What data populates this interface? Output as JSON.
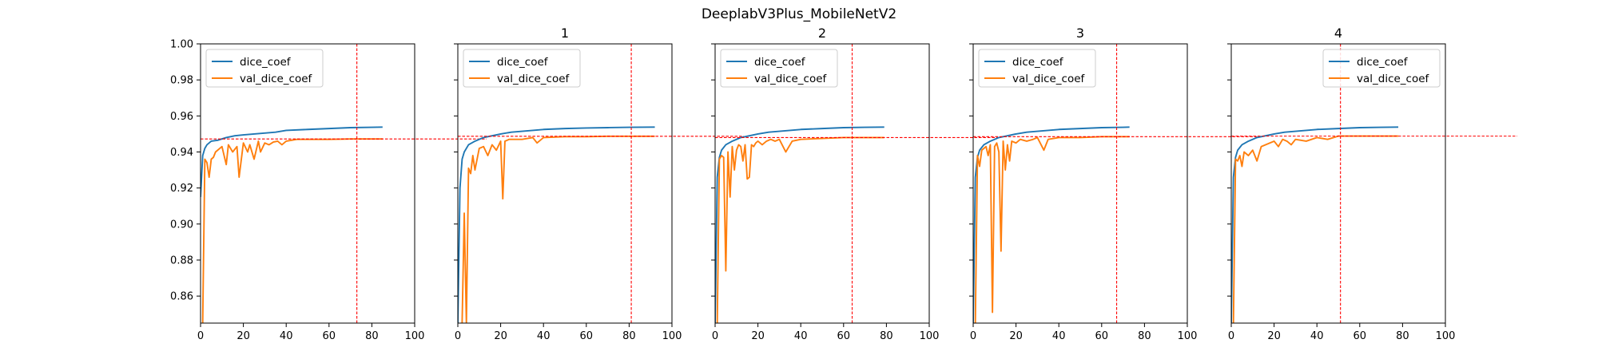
{
  "figure": {
    "title": "DeeplabV3Plus_MobileNetV2"
  },
  "colors": {
    "train": "#1f77b4",
    "val": "#ff7f0e",
    "marker": "#ff0000",
    "axis": "#000000"
  },
  "axes_common": {
    "xlim": [
      0,
      100
    ],
    "ylim": [
      0.845,
      1.0
    ],
    "xticks": [
      0,
      20,
      40,
      60,
      80,
      100
    ],
    "yticks": [
      0.86,
      0.88,
      0.9,
      0.92,
      0.94,
      0.96,
      0.98,
      1.0
    ],
    "ytick_labels": [
      "0.86",
      "0.88",
      "0.90",
      "0.92",
      "0.94",
      "0.96",
      "0.98",
      "1.00"
    ],
    "sharey": true
  },
  "chart_data": [
    {
      "type": "line",
      "title": "",
      "legend_loc": "upper-left",
      "series": [
        {
          "name": "dice_coef",
          "x": [
            0,
            1,
            2,
            3,
            5,
            8,
            12,
            16,
            20,
            25,
            30,
            35,
            40,
            50,
            60,
            70,
            80,
            85
          ],
          "y": [
            0.915,
            0.938,
            0.942,
            0.944,
            0.946,
            0.9465,
            0.948,
            0.949,
            0.9495,
            0.95,
            0.9505,
            0.951,
            0.952,
            0.9525,
            0.953,
            0.9535,
            0.9537,
            0.9538
          ]
        },
        {
          "name": "val_dice_coef",
          "x": [
            1,
            2,
            3,
            4,
            5,
            6,
            7,
            8,
            10,
            12,
            13,
            15,
            17,
            18,
            20,
            22,
            23,
            25,
            27,
            28,
            30,
            32,
            34,
            36,
            38,
            40,
            45,
            50,
            60,
            70,
            80,
            85
          ],
          "y": [
            0.845,
            0.936,
            0.934,
            0.926,
            0.936,
            0.937,
            0.94,
            0.941,
            0.943,
            0.933,
            0.944,
            0.94,
            0.943,
            0.926,
            0.945,
            0.94,
            0.944,
            0.936,
            0.946,
            0.94,
            0.945,
            0.944,
            0.9455,
            0.946,
            0.944,
            0.946,
            0.947,
            0.947,
            0.947,
            0.9472,
            0.9472,
            0.9472
          ]
        }
      ],
      "best_epoch": 73,
      "best_val": 0.9472
    },
    {
      "type": "line",
      "title": "1",
      "legend_loc": "upper-left",
      "series": [
        {
          "name": "dice_coef",
          "x": [
            0,
            1,
            2,
            3,
            5,
            8,
            12,
            16,
            20,
            25,
            30,
            35,
            40,
            50,
            60,
            70,
            80,
            92
          ],
          "y": [
            0.845,
            0.92,
            0.936,
            0.94,
            0.944,
            0.946,
            0.948,
            0.949,
            0.95,
            0.951,
            0.9515,
            0.952,
            0.9525,
            0.953,
            0.9533,
            0.9535,
            0.9537,
            0.9538
          ]
        },
        {
          "name": "val_dice_coef",
          "x": [
            2,
            3,
            4,
            5,
            6,
            7,
            8,
            10,
            12,
            14,
            16,
            18,
            20,
            21,
            22,
            24,
            26,
            30,
            35,
            37,
            40,
            50,
            60,
            70,
            80,
            92
          ],
          "y": [
            0.845,
            0.906,
            0.845,
            0.931,
            0.928,
            0.938,
            0.93,
            0.942,
            0.943,
            0.938,
            0.944,
            0.941,
            0.946,
            0.914,
            0.946,
            0.947,
            0.947,
            0.947,
            0.948,
            0.945,
            0.948,
            0.9485,
            0.9485,
            0.9487,
            0.9487,
            0.9487
          ]
        }
      ],
      "best_epoch": 81,
      "best_val": 0.9487
    },
    {
      "type": "line",
      "title": "2",
      "legend_loc": "upper-left",
      "series": [
        {
          "name": "dice_coef",
          "x": [
            0,
            1,
            2,
            3,
            5,
            8,
            12,
            16,
            20,
            25,
            30,
            35,
            40,
            50,
            60,
            70,
            79
          ],
          "y": [
            0.845,
            0.926,
            0.937,
            0.941,
            0.944,
            0.946,
            0.948,
            0.949,
            0.95,
            0.951,
            0.9515,
            0.952,
            0.9525,
            0.953,
            0.9535,
            0.9537,
            0.9538
          ]
        },
        {
          "name": "val_dice_coef",
          "x": [
            1,
            2,
            3,
            4,
            5,
            6,
            7,
            8,
            9,
            10,
            11,
            12,
            13,
            14,
            15,
            16,
            17,
            18,
            19,
            20,
            22,
            24,
            26,
            28,
            30,
            33,
            36,
            40,
            50,
            60,
            70,
            79
          ],
          "y": [
            0.845,
            0.936,
            0.938,
            0.937,
            0.874,
            0.94,
            0.915,
            0.943,
            0.93,
            0.941,
            0.944,
            0.943,
            0.935,
            0.944,
            0.925,
            0.926,
            0.944,
            0.943,
            0.945,
            0.946,
            0.944,
            0.946,
            0.947,
            0.946,
            0.947,
            0.94,
            0.946,
            0.947,
            0.9475,
            0.948,
            0.948,
            0.948
          ]
        }
      ],
      "best_epoch": 64,
      "best_val": 0.948
    },
    {
      "type": "line",
      "title": "3",
      "legend_loc": "upper-left",
      "series": [
        {
          "name": "dice_coef",
          "x": [
            0,
            1,
            2,
            3,
            5,
            8,
            12,
            16,
            20,
            25,
            30,
            35,
            40,
            50,
            60,
            70,
            73
          ],
          "y": [
            0.845,
            0.926,
            0.937,
            0.941,
            0.944,
            0.946,
            0.948,
            0.949,
            0.95,
            0.951,
            0.9515,
            0.952,
            0.9525,
            0.953,
            0.9535,
            0.9537,
            0.9538
          ]
        },
        {
          "name": "val_dice_coef",
          "x": [
            1,
            2,
            3,
            4,
            5,
            6,
            7,
            8,
            9,
            10,
            11,
            12,
            13,
            14,
            15,
            16,
            17,
            18,
            20,
            22,
            25,
            28,
            30,
            33,
            35,
            40,
            50,
            60,
            70,
            73
          ],
          "y": [
            0.845,
            0.938,
            0.932,
            0.941,
            0.942,
            0.943,
            0.938,
            0.944,
            0.851,
            0.943,
            0.945,
            0.94,
            0.885,
            0.946,
            0.93,
            0.944,
            0.935,
            0.946,
            0.945,
            0.947,
            0.946,
            0.947,
            0.948,
            0.941,
            0.947,
            0.948,
            0.948,
            0.9485,
            0.9485,
            0.9485
          ]
        }
      ],
      "best_epoch": 67,
      "best_val": 0.9485
    },
    {
      "type": "line",
      "title": "4",
      "legend_loc": "upper-right",
      "series": [
        {
          "name": "dice_coef",
          "x": [
            0,
            1,
            2,
            3,
            5,
            8,
            12,
            16,
            20,
            25,
            30,
            35,
            40,
            50,
            60,
            70,
            78
          ],
          "y": [
            0.845,
            0.926,
            0.937,
            0.941,
            0.944,
            0.946,
            0.948,
            0.949,
            0.95,
            0.951,
            0.9515,
            0.952,
            0.9525,
            0.953,
            0.9535,
            0.9537,
            0.9538
          ]
        },
        {
          "name": "val_dice_coef",
          "x": [
            1,
            2,
            3,
            4,
            5,
            6,
            8,
            10,
            12,
            14,
            16,
            18,
            20,
            22,
            24,
            26,
            28,
            30,
            35,
            40,
            45,
            50,
            60,
            70,
            78
          ],
          "y": [
            0.845,
            0.936,
            0.935,
            0.938,
            0.932,
            0.94,
            0.938,
            0.941,
            0.935,
            0.943,
            0.944,
            0.945,
            0.946,
            0.943,
            0.947,
            0.946,
            0.944,
            0.947,
            0.946,
            0.948,
            0.947,
            0.9488,
            0.9488,
            0.9488,
            0.9488
          ]
        }
      ],
      "best_epoch": 51,
      "best_val": 0.9488
    }
  ]
}
